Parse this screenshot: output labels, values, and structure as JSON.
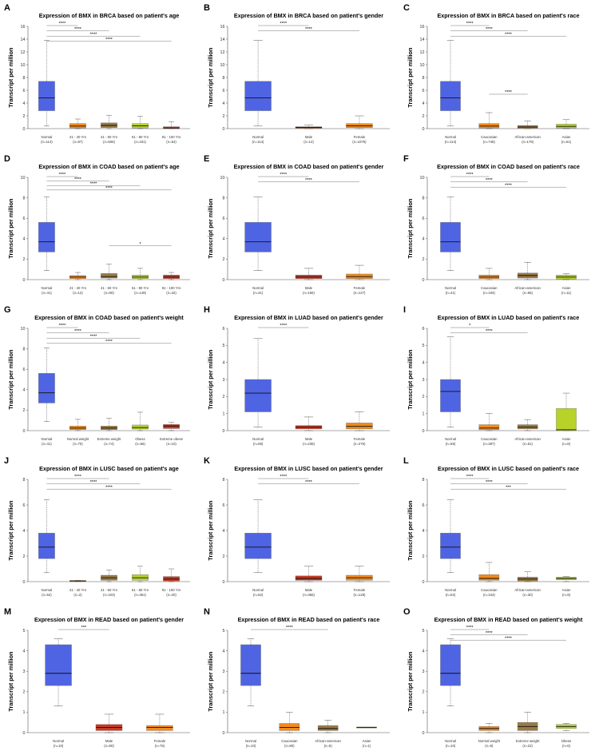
{
  "chart_data": [
    {
      "letter": "A",
      "type": "box",
      "title": "Expression of BMX in BRCA based on patient's age",
      "ylabel": "Transcript per million",
      "ylim": [
        0,
        16
      ],
      "yticks": [
        0,
        2,
        4,
        6,
        8,
        10,
        12,
        14,
        16
      ],
      "categories": [
        "Normal",
        "21 - 40 Yrs",
        "41 - 60 Yrs",
        "61 - 80 Yrs",
        "81 - 100 Yrs"
      ],
      "counts": [
        "(n=114)",
        "(n=97)",
        "(n=505)",
        "(n=431)",
        "(n=54)"
      ],
      "colors": [
        "#4f64e3",
        "#f08a1e",
        "#9a7a45",
        "#b8d22a",
        "#c83a23"
      ],
      "boxes": [
        [
          0.4,
          2.8,
          4.8,
          7.4,
          13.8
        ],
        [
          0,
          0.1,
          0.4,
          0.8,
          1.5
        ],
        [
          0,
          0.15,
          0.5,
          0.9,
          2.1
        ],
        [
          0,
          0.1,
          0.45,
          0.8,
          1.9
        ],
        [
          0,
          0,
          0.1,
          0.3,
          1.1
        ]
      ],
      "sig": [
        {
          "from": 0,
          "to": 1,
          "label": "****"
        },
        {
          "from": 0,
          "to": 2,
          "label": "****"
        },
        {
          "from": 0,
          "to": 3,
          "label": "****"
        },
        {
          "from": 0,
          "to": 4,
          "label": "****"
        }
      ]
    },
    {
      "letter": "B",
      "type": "box",
      "title": "Expression of BMX in BRCA based on patient's gender",
      "ylabel": "Transcript per million",
      "ylim": [
        0,
        16
      ],
      "yticks": [
        0,
        2,
        4,
        6,
        8,
        10,
        12,
        14,
        16
      ],
      "categories": [
        "Normal",
        "Male",
        "Female"
      ],
      "counts": [
        "(n=114)",
        "(n=12)",
        "(n=1075)"
      ],
      "colors": [
        "#4f64e3",
        "#9a4a28",
        "#f08a1e"
      ],
      "boxes": [
        [
          0.4,
          2.8,
          4.8,
          7.4,
          13.8
        ],
        [
          0,
          0.05,
          0.2,
          0.3,
          0.6
        ],
        [
          0,
          0.15,
          0.45,
          0.8,
          2.0
        ]
      ],
      "sig": [
        {
          "from": 0,
          "to": 1,
          "label": "****"
        },
        {
          "from": 0,
          "to": 2,
          "label": "****"
        }
      ]
    },
    {
      "letter": "C",
      "type": "box",
      "title": "Expression of BMX in BRCA based on patient's race",
      "ylabel": "Transcript per million",
      "ylim": [
        0,
        16
      ],
      "yticks": [
        0,
        2,
        4,
        6,
        8,
        10,
        12,
        14,
        16
      ],
      "categories": [
        "Normal",
        "Caucasian",
        "African-american",
        "Asian"
      ],
      "counts": [
        "(n=114)",
        "(n=748)",
        "(n=179)",
        "(n=61)"
      ],
      "colors": [
        "#4f64e3",
        "#f08a1e",
        "#9a7a45",
        "#b8d22a"
      ],
      "boxes": [
        [
          0.4,
          2.8,
          4.8,
          7.4,
          13.8
        ],
        [
          0,
          0.1,
          0.4,
          0.8,
          2.5
        ],
        [
          0,
          0.05,
          0.25,
          0.5,
          1.2
        ],
        [
          0,
          0.1,
          0.35,
          0.7,
          1.4
        ]
      ],
      "sig": [
        {
          "from": 0,
          "to": 1,
          "label": "****"
        },
        {
          "from": 0,
          "to": 2,
          "label": "****"
        },
        {
          "from": 0,
          "to": 3,
          "label": "****"
        },
        {
          "from": 1,
          "to": 2,
          "label": "****"
        }
      ]
    },
    {
      "letter": "D",
      "type": "box",
      "title": "Expression of BMX in COAD based on patient's age",
      "ylabel": "Transcript per million",
      "ylim": [
        0,
        10
      ],
      "yticks": [
        0,
        2,
        4,
        6,
        8,
        10
      ],
      "categories": [
        "Normal",
        "21 - 40 Yrs",
        "41 - 60 Yrs",
        "61 - 80 Yrs",
        "81 - 100 Yrs"
      ],
      "counts": [
        "(n=41)",
        "(n=12)",
        "(n=90)",
        "(n=149)",
        "(n=32)"
      ],
      "colors": [
        "#4f64e3",
        "#f08a1e",
        "#9a7a45",
        "#b8d22a",
        "#c83a23"
      ],
      "boxes": [
        [
          0.9,
          2.7,
          3.7,
          5.6,
          8.1
        ],
        [
          0,
          0.1,
          0.25,
          0.4,
          0.7
        ],
        [
          0,
          0.15,
          0.3,
          0.6,
          1.5
        ],
        [
          0,
          0.1,
          0.25,
          0.45,
          1.1
        ],
        [
          0,
          0.1,
          0.25,
          0.45,
          0.7
        ]
      ],
      "sig": [
        {
          "from": 0,
          "to": 1,
          "label": "****"
        },
        {
          "from": 0,
          "to": 2,
          "label": "****"
        },
        {
          "from": 0,
          "to": 3,
          "label": "****"
        },
        {
          "from": 0,
          "to": 4,
          "label": "****"
        },
        {
          "from": 2,
          "to": 4,
          "label": "*"
        }
      ]
    },
    {
      "letter": "E",
      "type": "box",
      "title": "Expression of BMX in COAD based on patient's gender",
      "ylabel": "Transcript per million",
      "ylim": [
        0,
        10
      ],
      "yticks": [
        0,
        2,
        4,
        6,
        8,
        10
      ],
      "categories": [
        "Normal",
        "Male",
        "Female"
      ],
      "counts": [
        "(n=41)",
        "(n=156)",
        "(n=127)"
      ],
      "colors": [
        "#4f64e3",
        "#c83a23",
        "#f08a1e"
      ],
      "boxes": [
        [
          0.9,
          2.7,
          3.7,
          5.6,
          8.1
        ],
        [
          0,
          0.1,
          0.25,
          0.45,
          1.1
        ],
        [
          0,
          0.1,
          0.3,
          0.55,
          1.4
        ]
      ],
      "sig": [
        {
          "from": 0,
          "to": 1,
          "label": "****"
        },
        {
          "from": 0,
          "to": 2,
          "label": "****"
        }
      ]
    },
    {
      "letter": "F",
      "type": "box",
      "title": "Expression of BMX in COAD based on patient's race",
      "ylabel": "Transcript per million",
      "ylim": [
        0,
        10
      ],
      "yticks": [
        0,
        2,
        4,
        6,
        8,
        10
      ],
      "categories": [
        "Normal",
        "Caucasian",
        "African-american",
        "Asian"
      ],
      "counts": [
        "(n=41)",
        "(n=193)",
        "(n=55)",
        "(n=11)"
      ],
      "colors": [
        "#4f64e3",
        "#f08a1e",
        "#9a7a45",
        "#b8d22a"
      ],
      "boxes": [
        [
          0.9,
          2.7,
          3.7,
          5.6,
          8.1
        ],
        [
          0,
          0.1,
          0.25,
          0.45,
          1.1
        ],
        [
          0,
          0.15,
          0.4,
          0.65,
          1.7
        ],
        [
          0,
          0.05,
          0.25,
          0.45,
          0.6
        ]
      ],
      "sig": [
        {
          "from": 0,
          "to": 1,
          "label": "****"
        },
        {
          "from": 0,
          "to": 2,
          "label": "****"
        },
        {
          "from": 0,
          "to": 3,
          "label": "****"
        }
      ]
    },
    {
      "letter": "G",
      "type": "box",
      "title": "Expression of BMX in COAD based on patient's weight",
      "ylabel": "Transcript per million",
      "ylim": [
        0,
        10
      ],
      "yticks": [
        0,
        2,
        4,
        6,
        8,
        10
      ],
      "categories": [
        "Normal",
        "Normal weight",
        "Extreme weight",
        "Obese",
        "Extreme obese"
      ],
      "counts": [
        "(n=41)",
        "(n=70)",
        "(n=74)",
        "(n=66)",
        "(n=10)"
      ],
      "colors": [
        "#4f64e3",
        "#f08a1e",
        "#9a7a45",
        "#b8d22a",
        "#c83a23"
      ],
      "boxes": [
        [
          0.9,
          2.7,
          3.7,
          5.6,
          8.1
        ],
        [
          0,
          0.1,
          0.25,
          0.45,
          1.1
        ],
        [
          0,
          0.1,
          0.25,
          0.45,
          1.2
        ],
        [
          0,
          0.15,
          0.3,
          0.55,
          1.8
        ],
        [
          0,
          0.2,
          0.45,
          0.6,
          0.8
        ]
      ],
      "sig": [
        {
          "from": 0,
          "to": 1,
          "label": "****"
        },
        {
          "from": 0,
          "to": 2,
          "label": "****"
        },
        {
          "from": 0,
          "to": 3,
          "label": "****"
        },
        {
          "from": 0,
          "to": 4,
          "label": "****"
        }
      ]
    },
    {
      "letter": "H",
      "type": "box",
      "title": "Expression of BMX in LUAD based on patient's gender",
      "ylabel": "Transcript per million",
      "ylim": [
        0,
        6
      ],
      "yticks": [
        0,
        1,
        2,
        3,
        4,
        5,
        6
      ],
      "categories": [
        "Normal",
        "Male",
        "Female"
      ],
      "counts": [
        "(n=59)",
        "(n=238)",
        "(n=276)"
      ],
      "colors": [
        "#4f64e3",
        "#c83a23",
        "#f08a1e"
      ],
      "boxes": [
        [
          0.2,
          1.1,
          2.2,
          3.0,
          5.4
        ],
        [
          0,
          0.1,
          0.2,
          0.3,
          0.8
        ],
        [
          0,
          0.1,
          0.25,
          0.45,
          1.1
        ]
      ],
      "sig": [
        {
          "from": 0,
          "to": 1,
          "label": "****"
        }
      ]
    },
    {
      "letter": "I",
      "type": "box",
      "title": "Expression of BMX in LUAD based on patient's race",
      "ylabel": "Transcript per million",
      "ylim": [
        0,
        6
      ],
      "yticks": [
        0,
        1,
        2,
        3,
        4,
        5,
        6
      ],
      "categories": [
        "Normal",
        "Caucasian",
        "African-american",
        "Asian"
      ],
      "counts": [
        "(n=59)",
        "(n=387)",
        "(n=51)",
        "(n=8)"
      ],
      "colors": [
        "#4f64e3",
        "#f08a1e",
        "#9a7a45",
        "#b8d22a"
      ],
      "boxes": [
        [
          0.2,
          1.1,
          2.3,
          3.0,
          5.5
        ],
        [
          0,
          0.05,
          0.15,
          0.35,
          1.0
        ],
        [
          0,
          0.1,
          0.2,
          0.35,
          0.65
        ],
        [
          0,
          0,
          0.05,
          1.3,
          2.2
        ]
      ],
      "sig": [
        {
          "from": 0,
          "to": 1,
          "label": "*"
        },
        {
          "from": 0,
          "to": 2,
          "label": "****"
        }
      ]
    },
    {
      "letter": "J",
      "type": "box",
      "title": "Expression of BMX in LUSC based on patient's age",
      "ylabel": "Transcript per million",
      "ylim": [
        0,
        8
      ],
      "yticks": [
        0,
        2,
        4,
        6,
        8
      ],
      "categories": [
        "Normal",
        "21 - 40 Yrs",
        "41 - 60 Yrs",
        "61 - 80 Yrs",
        "81 - 100 Yrs"
      ],
      "counts": [
        "(n=52)",
        "(n=2)",
        "(n=103)",
        "(n=361)",
        "(n=20)"
      ],
      "colors": [
        "#4f64e3",
        "#f08a1e",
        "#9a7a45",
        "#b8d22a",
        "#c83a23"
      ],
      "boxes": [
        [
          0.7,
          1.8,
          2.7,
          3.8,
          6.4
        ],
        [
          0,
          0.02,
          0.05,
          0.08,
          0.1
        ],
        [
          0,
          0.1,
          0.3,
          0.5,
          0.9
        ],
        [
          0,
          0.1,
          0.3,
          0.55,
          1.2
        ],
        [
          0,
          0.05,
          0.2,
          0.4,
          1.0
        ]
      ],
      "sig": [
        {
          "from": 0,
          "to": 2,
          "label": "****"
        },
        {
          "from": 0,
          "to": 3,
          "label": "****"
        },
        {
          "from": 0,
          "to": 4,
          "label": "****"
        }
      ]
    },
    {
      "letter": "K",
      "type": "box",
      "title": "Expression of BMX in LUSC based on patient's gender",
      "ylabel": "Transcript per million",
      "ylim": [
        0,
        8
      ],
      "yticks": [
        0,
        2,
        4,
        6,
        8
      ],
      "categories": [
        "Normal",
        "Male",
        "Female"
      ],
      "counts": [
        "(n=52)",
        "(n=366)",
        "(n=128)"
      ],
      "colors": [
        "#4f64e3",
        "#c83a23",
        "#f08a1e"
      ],
      "boxes": [
        [
          0.7,
          1.8,
          2.7,
          3.8,
          6.4
        ],
        [
          0,
          0.1,
          0.25,
          0.45,
          1.2
        ],
        [
          0,
          0.1,
          0.3,
          0.5,
          1.2
        ]
      ],
      "sig": [
        {
          "from": 0,
          "to": 1,
          "label": "****"
        },
        {
          "from": 0,
          "to": 2,
          "label": "****"
        }
      ]
    },
    {
      "letter": "L",
      "type": "box",
      "title": "Expression of BMX in LUSC based on patient's race",
      "ylabel": "Transcript per million",
      "ylim": [
        0,
        8
      ],
      "yticks": [
        0,
        2,
        4,
        6,
        8
      ],
      "categories": [
        "Normal",
        "Caucasian",
        "African-american",
        "Asian"
      ],
      "counts": [
        "(n=52)",
        "(n=343)",
        "(n=30)",
        "(n=9)"
      ],
      "colors": [
        "#4f64e3",
        "#f08a1e",
        "#9a7a45",
        "#b8d22a"
      ],
      "boxes": [
        [
          0.7,
          1.8,
          2.7,
          3.8,
          6.4
        ],
        [
          0,
          0.1,
          0.25,
          0.55,
          1.5
        ],
        [
          0,
          0.05,
          0.2,
          0.35,
          0.8
        ],
        [
          0,
          0.15,
          0.25,
          0.35,
          0.4
        ]
      ],
      "sig": [
        {
          "from": 0,
          "to": 1,
          "label": "****"
        },
        {
          "from": 0,
          "to": 2,
          "label": "****"
        },
        {
          "from": 0,
          "to": 3,
          "label": "***"
        }
      ]
    },
    {
      "letter": "M",
      "type": "box",
      "title": "Expression of BMX in READ based on patient's gender",
      "ylabel": "Transcript per million",
      "ylim": [
        0,
        5
      ],
      "yticks": [
        0,
        1,
        2,
        3,
        4,
        5
      ],
      "categories": [
        "Normal",
        "Male",
        "Female"
      ],
      "counts": [
        "(n=10)",
        "(n=80)",
        "(n=75)"
      ],
      "colors": [
        "#4f64e3",
        "#c83a23",
        "#f08a1e"
      ],
      "boxes": [
        [
          1.3,
          2.3,
          2.9,
          4.3,
          4.6
        ],
        [
          0,
          0.1,
          0.25,
          0.4,
          0.9
        ],
        [
          0,
          0.1,
          0.25,
          0.35,
          0.9
        ]
      ],
      "sig": [
        {
          "from": 0,
          "to": 1,
          "label": "***"
        }
      ]
    },
    {
      "letter": "N",
      "type": "box",
      "title": "Expression of BMX in READ based on patient's race",
      "ylabel": "Transcript per million",
      "ylim": [
        0,
        5
      ],
      "yticks": [
        0,
        1,
        2,
        3,
        4,
        5
      ],
      "categories": [
        "Normal",
        "Caucasian",
        "African-american",
        "Asian"
      ],
      "counts": [
        "(n=10)",
        "(n=80)",
        "(n=6)",
        "(n=1)"
      ],
      "colors": [
        "#4f64e3",
        "#f08a1e",
        "#9a7a45",
        "#b8d22a"
      ],
      "boxes": [
        [
          1.3,
          2.3,
          2.9,
          4.3,
          4.6
        ],
        [
          0,
          0.1,
          0.25,
          0.45,
          1.0
        ],
        [
          0,
          0.1,
          0.2,
          0.35,
          0.6
        ],
        [
          0.25,
          0.25,
          0.25,
          0.25,
          0.25
        ]
      ],
      "sig": [
        {
          "from": 0,
          "to": 2,
          "label": "****"
        }
      ]
    },
    {
      "letter": "O",
      "type": "box",
      "title": "Expression of BMX in READ based on patient's weight",
      "ylabel": "Transcript per million",
      "ylim": [
        0,
        5
      ],
      "yticks": [
        0,
        1,
        2,
        3,
        4,
        5
      ],
      "categories": [
        "Normal",
        "Normal weight",
        "Extreme weight",
        "Obese"
      ],
      "counts": [
        "(n=10)",
        "(n=9)",
        "(n=22)",
        "(n=6)"
      ],
      "colors": [
        "#4f64e3",
        "#f08a1e",
        "#9a7a45",
        "#b8d22a"
      ],
      "boxes": [
        [
          1.3,
          2.3,
          2.9,
          4.3,
          4.6
        ],
        [
          0,
          0.1,
          0.2,
          0.3,
          0.45
        ],
        [
          0,
          0.1,
          0.3,
          0.5,
          1.0
        ],
        [
          0.1,
          0.2,
          0.3,
          0.4,
          0.45
        ]
      ],
      "sig": [
        {
          "from": 0,
          "to": 1,
          "label": "****"
        },
        {
          "from": 0,
          "to": 2,
          "label": "****"
        },
        {
          "from": 0,
          "to": 3,
          "label": "****"
        }
      ]
    }
  ]
}
